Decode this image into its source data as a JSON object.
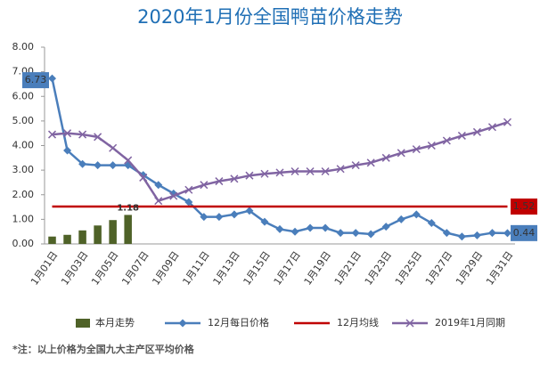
{
  "chart_data": {
    "type": "combo",
    "title": "2020年1月份全国鸭苗价格走势",
    "note": "*注：以上价格为全国九大主产区平均价格",
    "categories": [
      "1月01日",
      null,
      "1月03日",
      null,
      "1月05日",
      null,
      "1月07日",
      null,
      "1月09日",
      null,
      "1月11日",
      null,
      "1月13日",
      null,
      "1月15日",
      null,
      "1月17日",
      null,
      "1月19日",
      null,
      "1月21日",
      null,
      "1月23日",
      null,
      "1月25日",
      null,
      "1月27日",
      null,
      "1月29日",
      null,
      "1月31日"
    ],
    "ylim": [
      0,
      8
    ],
    "yticks": [
      {
        "value": 0,
        "label": "0.00"
      },
      {
        "value": 1,
        "label": "1.00"
      },
      {
        "value": 2,
        "label": "2.00"
      },
      {
        "value": 3,
        "label": "3.00"
      },
      {
        "value": 4,
        "label": "4.00"
      },
      {
        "value": 5,
        "label": "5.00"
      },
      {
        "value": 6,
        "label": "6.00"
      },
      {
        "value": 7,
        "label": "7.00"
      },
      {
        "value": 8,
        "label": "8.00"
      }
    ],
    "grid": false,
    "series": [
      {
        "name": "本月走势",
        "type": "bar",
        "color": "#4f6228",
        "values": [
          0.3,
          0.37,
          0.55,
          0.75,
          0.97,
          1.18,
          null,
          null,
          null,
          null,
          null,
          null,
          null,
          null,
          null,
          null,
          null,
          null,
          null,
          null,
          null,
          null,
          null,
          null,
          null,
          null,
          null,
          null,
          null,
          null,
          null
        ]
      },
      {
        "name": "12月每日价格",
        "type": "line",
        "marker": "diamond",
        "color": "#4a7ebb",
        "values": [
          6.73,
          3.8,
          3.25,
          3.2,
          3.2,
          3.2,
          2.8,
          2.4,
          2.05,
          1.7,
          1.1,
          1.1,
          1.2,
          1.35,
          0.9,
          0.6,
          0.5,
          0.65,
          0.65,
          0.45,
          0.45,
          0.4,
          0.7,
          1.0,
          1.2,
          0.85,
          0.45,
          0.3,
          0.35,
          0.45,
          0.44
        ]
      },
      {
        "name": "12月均线",
        "type": "line",
        "marker": "none",
        "color": "#c00000",
        "values": [
          1.52,
          1.52,
          1.52,
          1.52,
          1.52,
          1.52,
          1.52,
          1.52,
          1.52,
          1.52,
          1.52,
          1.52,
          1.52,
          1.52,
          1.52,
          1.52,
          1.52,
          1.52,
          1.52,
          1.52,
          1.52,
          1.52,
          1.52,
          1.52,
          1.52,
          1.52,
          1.52,
          1.52,
          1.52,
          1.52,
          1.52
        ]
      },
      {
        "name": "2019年1月同期",
        "type": "line",
        "marker": "x",
        "color": "#8064a2",
        "values": [
          4.45,
          4.5,
          4.45,
          4.35,
          3.9,
          3.4,
          2.7,
          1.75,
          1.95,
          2.2,
          2.4,
          2.55,
          2.65,
          2.78,
          2.85,
          2.9,
          2.95,
          2.95,
          2.95,
          3.05,
          3.2,
          3.3,
          3.5,
          3.7,
          3.85,
          4.0,
          4.2,
          4.4,
          4.55,
          4.75,
          4.95
        ]
      }
    ]
  }
}
